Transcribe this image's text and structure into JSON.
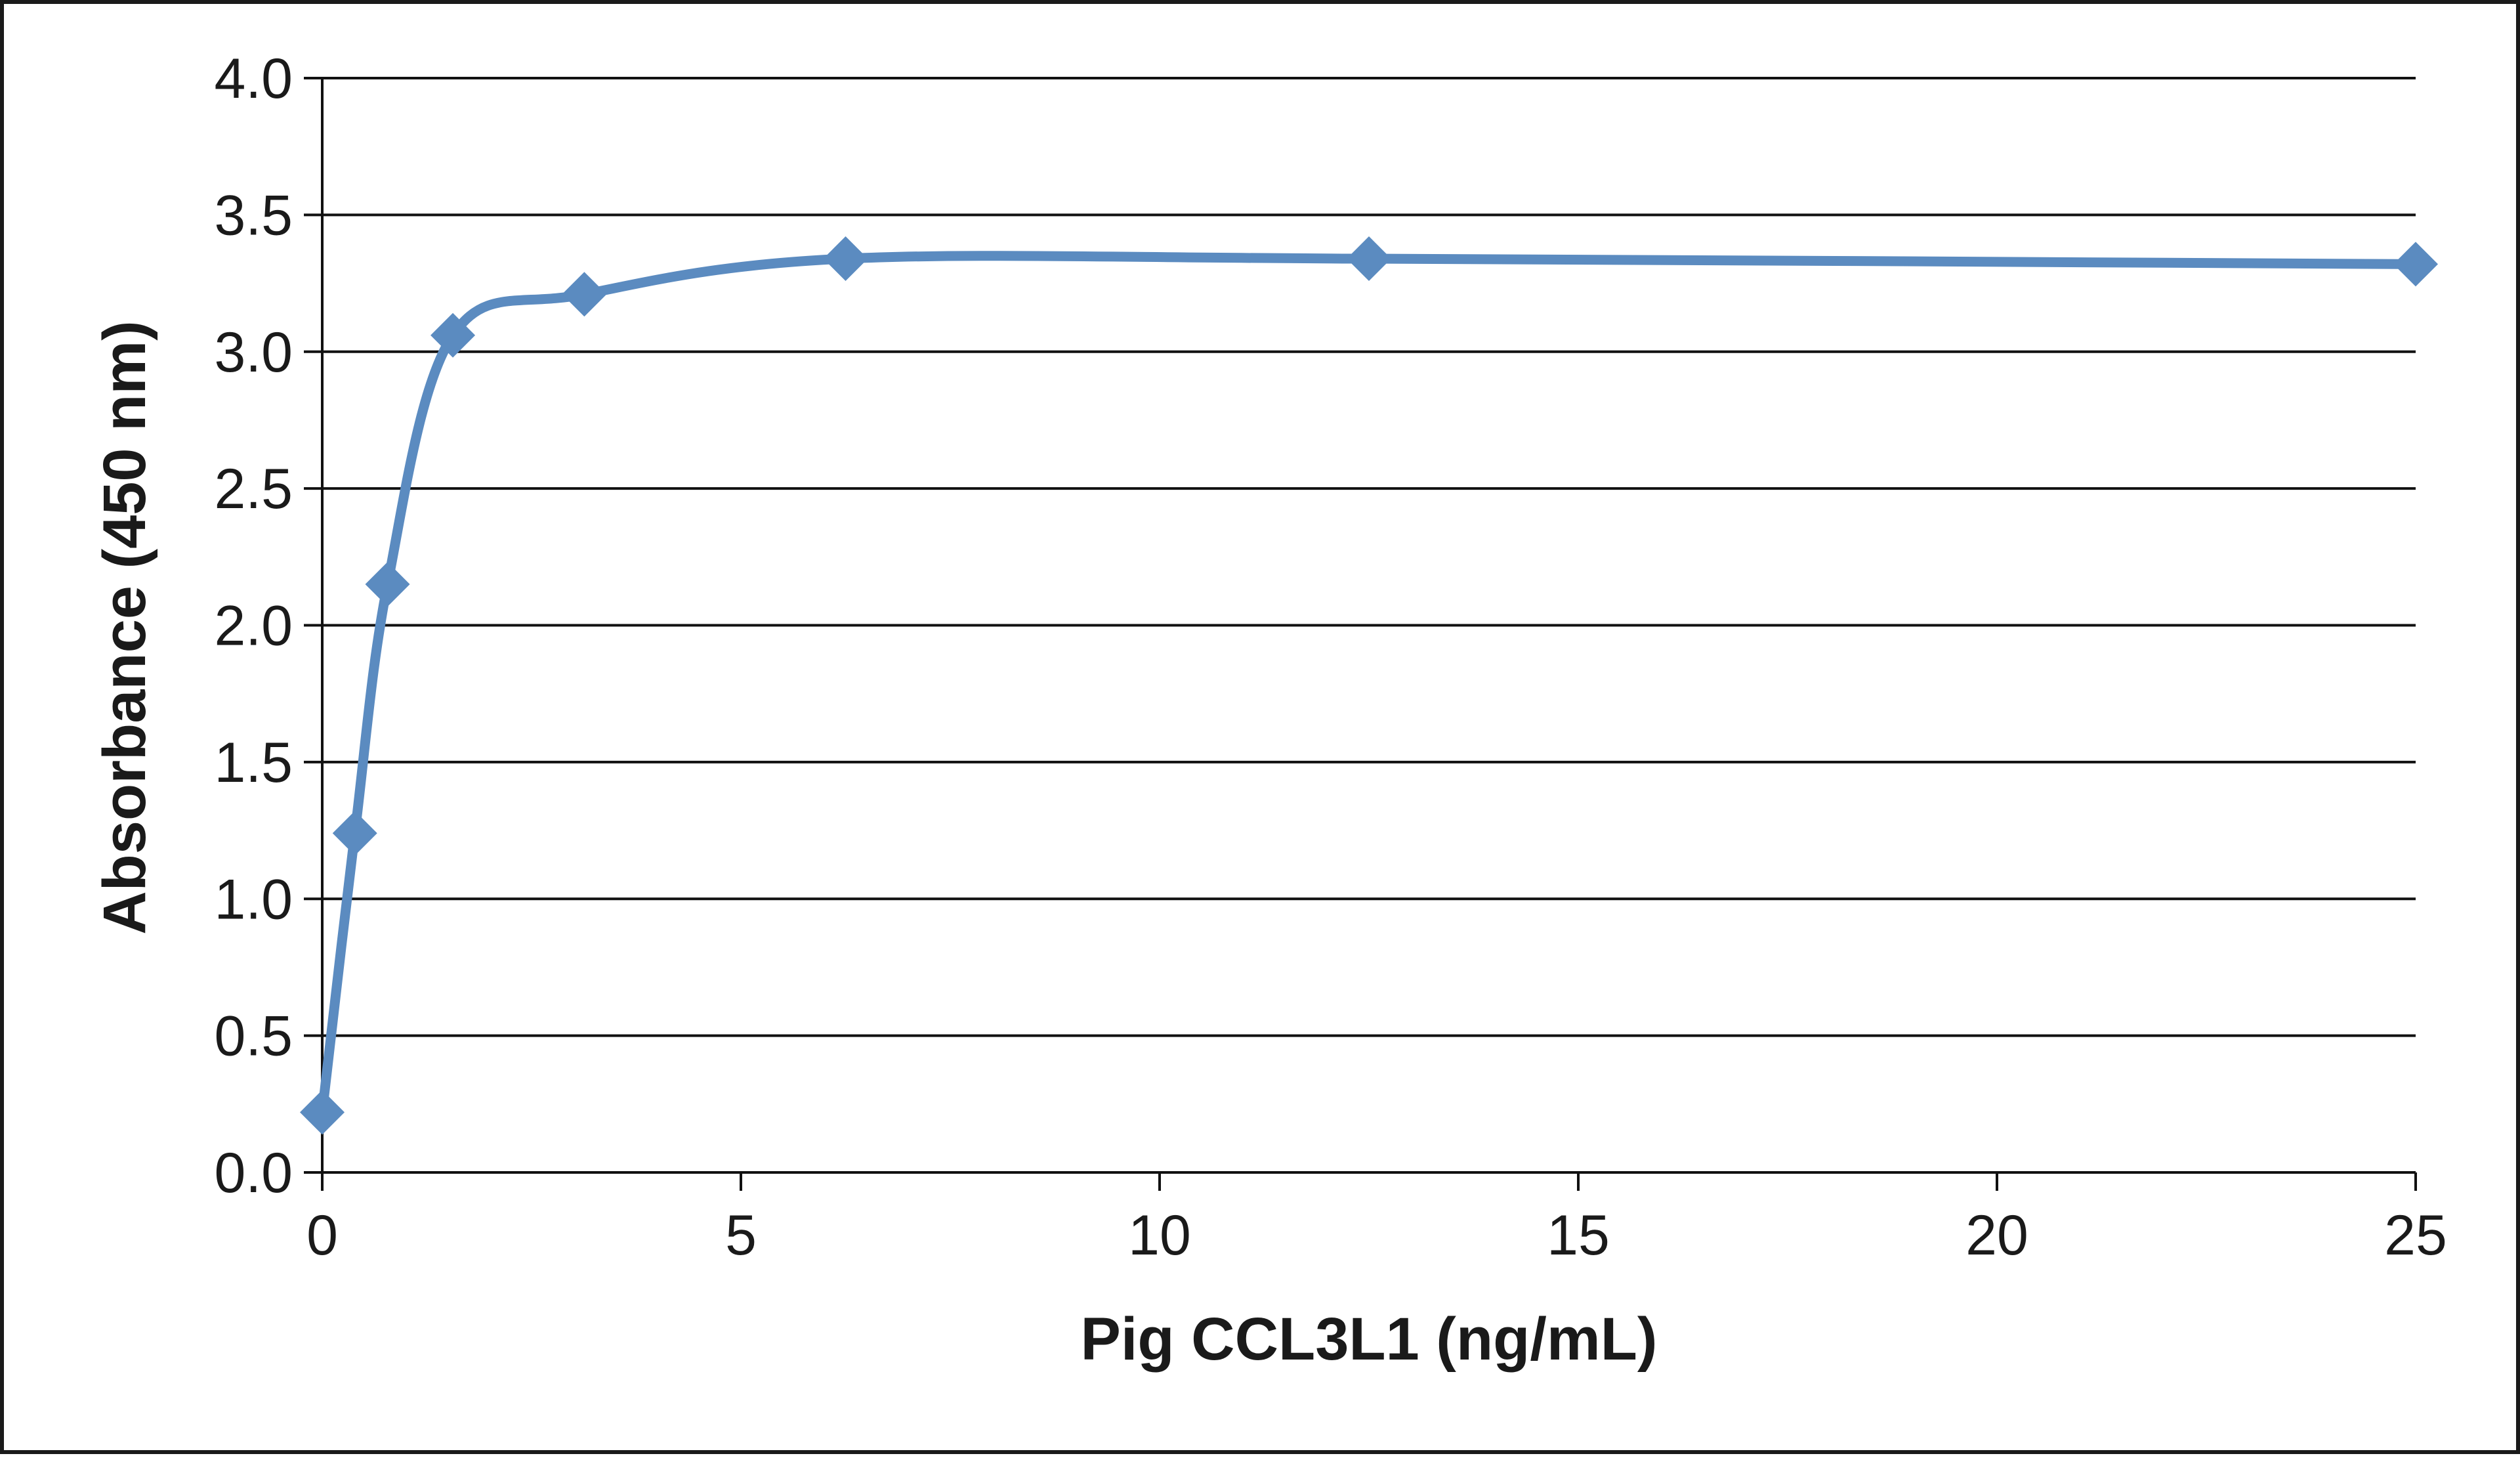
{
  "chart_data": {
    "type": "line",
    "title": "",
    "xlabel": "Pig CCL3L1  (ng/mL)",
    "ylabel": "Absorbance  (450 nm)",
    "xlim": [
      0,
      25
    ],
    "ylim": [
      0,
      4.0
    ],
    "x_ticks": [
      0,
      5,
      10,
      15,
      20,
      25
    ],
    "y_ticks": [
      0,
      0.5,
      1.0,
      1.5,
      2.0,
      2.5,
      3.0,
      3.5,
      4.0
    ],
    "x_tick_labels": [
      "0",
      "5",
      "10",
      "15",
      "20",
      "25"
    ],
    "y_tick_labels": [
      "0.0",
      "0.5",
      "1.0",
      "1.5",
      "2.0",
      "2.5",
      "3.0",
      "3.5",
      "4.0"
    ],
    "grid": true,
    "legend": "none",
    "series": [
      {
        "name": "Pig CCL3L1",
        "color": "#5b8bc0",
        "marker": "diamond",
        "smooth": true,
        "x": [
          0,
          0.39,
          0.78,
          1.56,
          3.13,
          6.25,
          12.5,
          25
        ],
        "y": [
          0.22,
          1.24,
          2.15,
          3.06,
          3.21,
          3.34,
          3.34,
          3.32
        ]
      }
    ]
  }
}
